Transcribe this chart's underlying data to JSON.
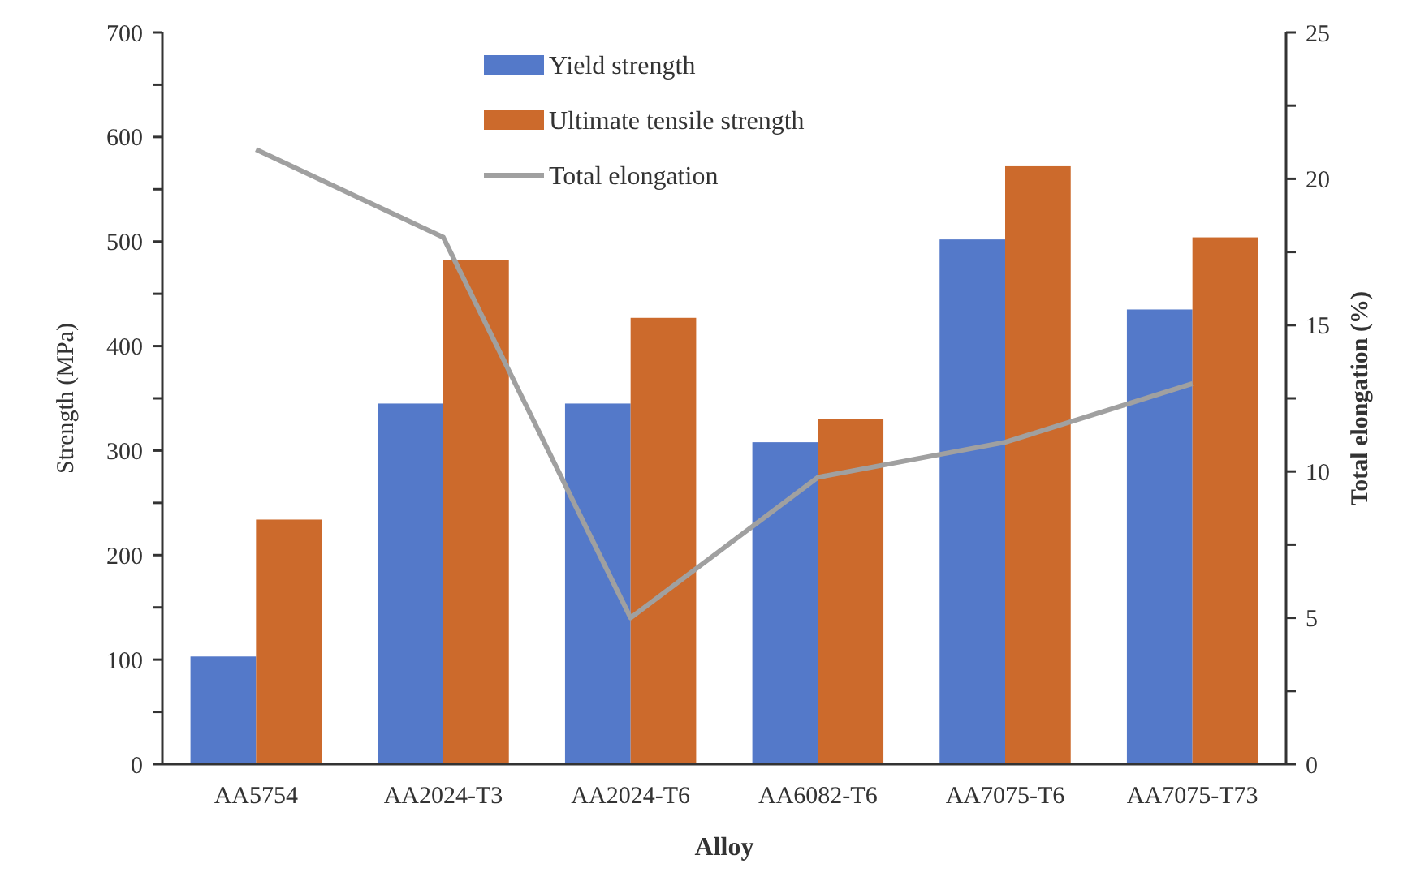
{
  "chart_data": {
    "type": "bar",
    "xlabel": "Alloy",
    "ylabel": "Strength (MPa)",
    "y2label": "Total elongation (%)",
    "categories": [
      "AA5754",
      "AA2024-T3",
      "AA2024-T6",
      "AA6082-T6",
      "AA7075-T6",
      "AA7075-T73"
    ],
    "series": [
      {
        "name": "Yield strength",
        "color": "#5479c9",
        "values": [
          103,
          345,
          345,
          308,
          502,
          435
        ]
      },
      {
        "name": "Ultimate tensile strength",
        "color": "#cc6a2c",
        "values": [
          234,
          482,
          427,
          330,
          572,
          504
        ]
      },
      {
        "name": "Total elongation",
        "type": "line",
        "axis": "y2",
        "color": "#a0a0a0",
        "values": [
          21,
          18,
          5,
          9.8,
          11,
          13
        ]
      }
    ],
    "ylim": [
      0,
      700
    ],
    "yticks": [
      0,
      {
        "value": 50,
        "label": null
      },
      100,
      {
        "value": 150,
        "label": null
      },
      200,
      {
        "value": 250,
        "label": null
      },
      300,
      {
        "value": 350,
        "label": null
      },
      400,
      {
        "value": 450,
        "label": null
      },
      500,
      {
        "value": 550,
        "label": null
      },
      600,
      {
        "value": 650,
        "label": null
      },
      700
    ],
    "y2lim": [
      0,
      25
    ],
    "y2ticks": [
      0,
      {
        "value": 2.5,
        "label": null
      },
      5,
      {
        "value": 7.5,
        "label": null
      },
      10,
      {
        "value": 12.5,
        "label": null
      },
      15,
      {
        "value": 17.5,
        "label": null
      },
      20,
      {
        "value": 22.5,
        "label": null
      },
      25
    ],
    "grid": false,
    "legend": "top",
    "marker": "none",
    "line_style": "solid"
  }
}
